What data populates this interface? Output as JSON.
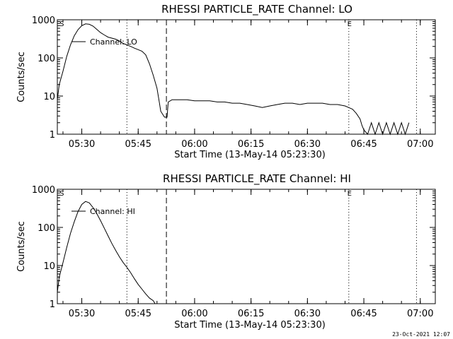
{
  "chart_data": [
    {
      "type": "line",
      "title": "RHESSI PARTICLE_RATE Channel: LO",
      "xlabel": "Start Time (13-May-14 05:23:30)",
      "ylabel": "Counts/sec",
      "yscale": "log",
      "ylim": [
        1,
        1000
      ],
      "xlim": [
        "05:23:30",
        "07:04:00"
      ],
      "x_ticks": [
        "05:30",
        "05:45",
        "06:00",
        "06:15",
        "06:30",
        "06:45",
        "07:00"
      ],
      "y_ticks": [
        "1",
        "10",
        "100",
        "1000"
      ],
      "legend": "Channel: LO",
      "markers": [
        {
          "time": "05:24:30",
          "style": "none",
          "label": "S"
        },
        {
          "time": "05:42:00",
          "style": "dotted",
          "label": ""
        },
        {
          "time": "05:52:30",
          "style": "dashed",
          "label": ""
        },
        {
          "time": "06:41:00",
          "style": "dotted",
          "label": "E"
        },
        {
          "time": "06:59:00",
          "style": "dotted",
          "label": ""
        }
      ],
      "series": [
        {
          "x": [
            "05:23:30",
            "05:24:00",
            "05:25:00",
            "05:26:00",
            "05:27:00",
            "05:28:00",
            "05:29:00",
            "05:30:00",
            "05:31:00",
            "05:32:00",
            "05:33:00",
            "05:34:00",
            "05:35:00",
            "05:36:00",
            "05:37:00",
            "05:38:00",
            "05:39:00",
            "05:40:00",
            "05:41:00",
            "05:42:00",
            "05:43:00",
            "05:44:00",
            "05:45:00",
            "05:46:00",
            "05:47:00",
            "05:48:00",
            "05:49:00",
            "05:50:00",
            "05:50:30",
            "05:51:00",
            "05:52:00",
            "05:52:40",
            "05:53:00",
            "05:54:00",
            "05:56:00",
            "05:58:00",
            "06:00:00",
            "06:02:00",
            "06:04:00",
            "06:06:00",
            "06:08:00",
            "06:10:00",
            "06:12:00",
            "06:14:00",
            "06:16:00",
            "06:18:00",
            "06:20:00",
            "06:22:00",
            "06:24:00",
            "06:26:00",
            "06:28:00",
            "06:30:00",
            "06:32:00",
            "06:34:00",
            "06:36:00",
            "06:38:00",
            "06:40:00",
            "06:41:00",
            "06:42:00",
            "06:43:00",
            "06:44:00",
            "06:44:30",
            "06:45:00",
            "06:46:00",
            "06:47:00",
            "06:48:00",
            "06:49:00",
            "06:50:00",
            "06:51:00",
            "06:52:00",
            "06:53:00",
            "06:54:00",
            "06:55:00",
            "06:56:00",
            "06:57:00"
          ],
          "y": [
            8,
            20,
            45,
            110,
            220,
            380,
            550,
            700,
            780,
            760,
            680,
            560,
            460,
            400,
            350,
            330,
            310,
            280,
            240,
            220,
            200,
            180,
            165,
            150,
            120,
            70,
            35,
            16,
            8,
            4,
            2.8,
            2.8,
            7,
            8,
            8,
            8,
            7.5,
            7.5,
            7.5,
            7,
            7,
            6.5,
            6.5,
            6,
            5.5,
            5,
            5.5,
            6,
            6.5,
            6.5,
            6,
            6.5,
            6.5,
            6.5,
            6,
            6,
            5.5,
            5,
            4.5,
            3.5,
            2.5,
            1.7,
            1.3,
            1,
            2,
            1,
            2,
            1,
            2,
            1,
            2,
            1,
            2,
            1,
            2
          ]
        }
      ]
    },
    {
      "type": "line",
      "title": "RHESSI PARTICLE_RATE Channel: HI",
      "xlabel": "Start Time (13-May-14 05:23:30)",
      "ylabel": "Counts/sec",
      "yscale": "log",
      "ylim": [
        1,
        1000
      ],
      "xlim": [
        "05:23:30",
        "07:04:00"
      ],
      "x_ticks": [
        "05:30",
        "05:45",
        "06:00",
        "06:15",
        "06:30",
        "06:45",
        "07:00"
      ],
      "y_ticks": [
        "1",
        "10",
        "100",
        "1000"
      ],
      "legend": "Channel: HI",
      "markers": [
        {
          "time": "05:24:30",
          "style": "none",
          "label": "S"
        },
        {
          "time": "05:42:00",
          "style": "dotted",
          "label": ""
        },
        {
          "time": "05:52:30",
          "style": "dashed",
          "label": ""
        },
        {
          "time": "06:41:00",
          "style": "dotted",
          "label": "E"
        },
        {
          "time": "06:59:00",
          "style": "dotted",
          "label": ""
        }
      ],
      "series": [
        {
          "x": [
            "05:23:30",
            "05:24:00",
            "05:25:00",
            "05:26:00",
            "05:27:00",
            "05:28:00",
            "05:29:00",
            "05:30:00",
            "05:31:00",
            "05:32:00",
            "05:33:00",
            "05:34:00",
            "05:35:00",
            "05:36:00",
            "05:37:00",
            "05:38:00",
            "05:39:00",
            "05:40:00",
            "05:41:00",
            "05:42:00",
            "05:43:00",
            "05:44:00",
            "05:45:00",
            "05:46:00",
            "05:47:00",
            "05:48:00",
            "05:49:00",
            "05:49:30"
          ],
          "y": [
            2,
            5,
            12,
            30,
            70,
            140,
            260,
            400,
            480,
            440,
            330,
            230,
            150,
            95,
            60,
            38,
            25,
            17,
            12,
            9,
            6.5,
            4.5,
            3.2,
            2.4,
            1.8,
            1.4,
            1.2,
            1
          ]
        }
      ]
    }
  ],
  "footer": {
    "date_stamp": "23-Oct-2021 12:07"
  }
}
